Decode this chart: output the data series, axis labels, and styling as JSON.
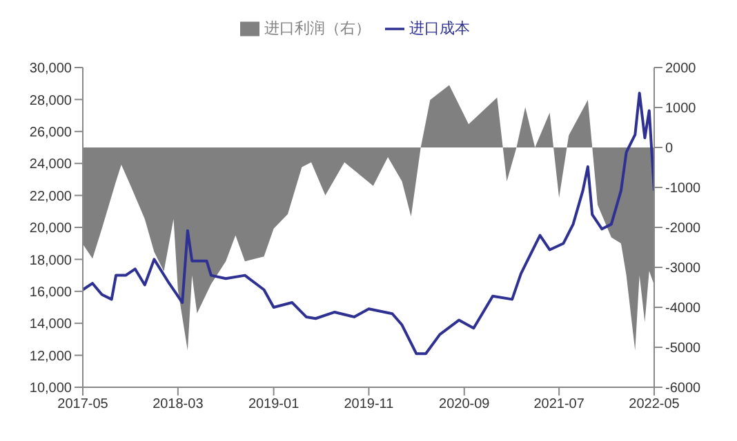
{
  "chart_data": {
    "type": "line",
    "legend": "top",
    "grid": false,
    "xlim": [
      "2017-05",
      "2022-05"
    ],
    "xticks": [
      "2017-05",
      "2018-03",
      "2019-01",
      "2019-11",
      "2020-09",
      "2021-07",
      "2022-05"
    ],
    "ylim": [
      10000,
      30000
    ],
    "yticks": [
      {
        "value": 10000,
        "label": "10,000"
      },
      {
        "value": 12000,
        "label": "12,000"
      },
      {
        "value": 14000,
        "label": "14,000"
      },
      {
        "value": 16000,
        "label": "16,000"
      },
      {
        "value": 18000,
        "label": "18,000"
      },
      {
        "value": 20000,
        "label": "20,000"
      },
      {
        "value": 22000,
        "label": "22,000"
      },
      {
        "value": 24000,
        "label": "24,000"
      },
      {
        "value": 26000,
        "label": "26,000"
      },
      {
        "value": 28000,
        "label": "28,000"
      },
      {
        "value": 30000,
        "label": "30,000"
      }
    ],
    "y2lim": [
      -6000,
      2000
    ],
    "y2ticks": [
      -6000,
      -5000,
      -4000,
      -3000,
      -2000,
      -1000,
      0,
      1000,
      2000
    ],
    "series": [
      {
        "name": "进口利润（右）",
        "type": "area",
        "axis": "y2",
        "color": "#808080",
        "x": [
          "2017-05-01",
          "2017-06-01",
          "2017-07-01",
          "2017-08-15",
          "2017-09-01",
          "2017-10-01",
          "2017-11-15",
          "2017-12-15",
          "2018-01-15",
          "2018-02-15",
          "2018-03-01",
          "2018-04-01",
          "2018-04-15",
          "2018-05-01",
          "2018-06-15",
          "2018-08-01",
          "2018-09-01",
          "2018-10-01",
          "2018-12-01",
          "2019-01-01",
          "2019-02-15",
          "2019-04-01",
          "2019-05-01",
          "2019-06-15",
          "2019-08-15",
          "2019-11-15",
          "2020-01-01",
          "2020-02-15",
          "2020-03-15",
          "2020-04-15",
          "2020-05-15",
          "2020-07-15",
          "2020-09-15",
          "2020-12-15",
          "2021-01-15",
          "2021-02-15",
          "2021-03-15",
          "2021-04-15",
          "2021-06-01",
          "2021-07-01",
          "2021-08-01",
          "2021-10-01",
          "2021-11-01",
          "2021-12-15",
          "2022-01-15",
          "2022-02-01",
          "2022-03-01",
          "2022-03-15",
          "2022-04-01",
          "2022-04-15",
          "2022-05-01"
        ],
        "values": [
          -2420,
          -2780,
          -2030,
          -850,
          -430,
          -960,
          -1790,
          -2610,
          -3100,
          -1790,
          -3560,
          -5080,
          -3200,
          -4150,
          -3420,
          -2850,
          -2200,
          -2850,
          -2730,
          -2030,
          -1670,
          -490,
          -370,
          -1200,
          -370,
          -960,
          -240,
          -850,
          -1730,
          0,
          1190,
          1560,
          580,
          1250,
          -850,
          0,
          1010,
          0,
          870,
          -1260,
          300,
          1190,
          -1430,
          -2250,
          -2400,
          -3200,
          -5080,
          -3200,
          -4370,
          -3090,
          -3440
        ]
      },
      {
        "name": "进口成本",
        "color": "#2e3192",
        "x": [
          "2017-05-01",
          "2017-06-01",
          "2017-07-01",
          "2017-08-01",
          "2017-08-15",
          "2017-09-15",
          "2017-10-15",
          "2017-11-15",
          "2017-12-15",
          "2018-02-01",
          "2018-03-15",
          "2018-04-01",
          "2018-04-15",
          "2018-06-01",
          "2018-06-15",
          "2018-08-01",
          "2018-10-01",
          "2018-12-01",
          "2019-01-01",
          "2019-03-01",
          "2019-04-15",
          "2019-05-15",
          "2019-07-15",
          "2019-09-15",
          "2019-11-01",
          "2020-01-15",
          "2020-02-15",
          "2020-04-01",
          "2020-05-01",
          "2020-06-15",
          "2020-08-15",
          "2020-10-01",
          "2020-12-01",
          "2021-02-01",
          "2021-03-01",
          "2021-05-01",
          "2021-06-01",
          "2021-07-15",
          "2021-08-15",
          "2021-09-15",
          "2021-10-01",
          "2021-10-15",
          "2021-11-15",
          "2021-12-15",
          "2022-01-15",
          "2022-02-01",
          "2022-03-01",
          "2022-03-15",
          "2022-04-01",
          "2022-04-15",
          "2022-05-01"
        ],
        "values": [
          16100,
          16500,
          15800,
          15500,
          17000,
          17000,
          17400,
          16400,
          18000,
          16500,
          15300,
          19800,
          17900,
          17900,
          17000,
          16800,
          17000,
          16100,
          15000,
          15300,
          14400,
          14300,
          14700,
          14400,
          14900,
          14600,
          13900,
          12100,
          12100,
          13300,
          14200,
          13700,
          15700,
          15500,
          17100,
          19500,
          18600,
          19000,
          20200,
          22300,
          23800,
          20800,
          19900,
          20200,
          22300,
          24700,
          25800,
          28400,
          25600,
          27300,
          22300
        ]
      }
    ]
  }
}
